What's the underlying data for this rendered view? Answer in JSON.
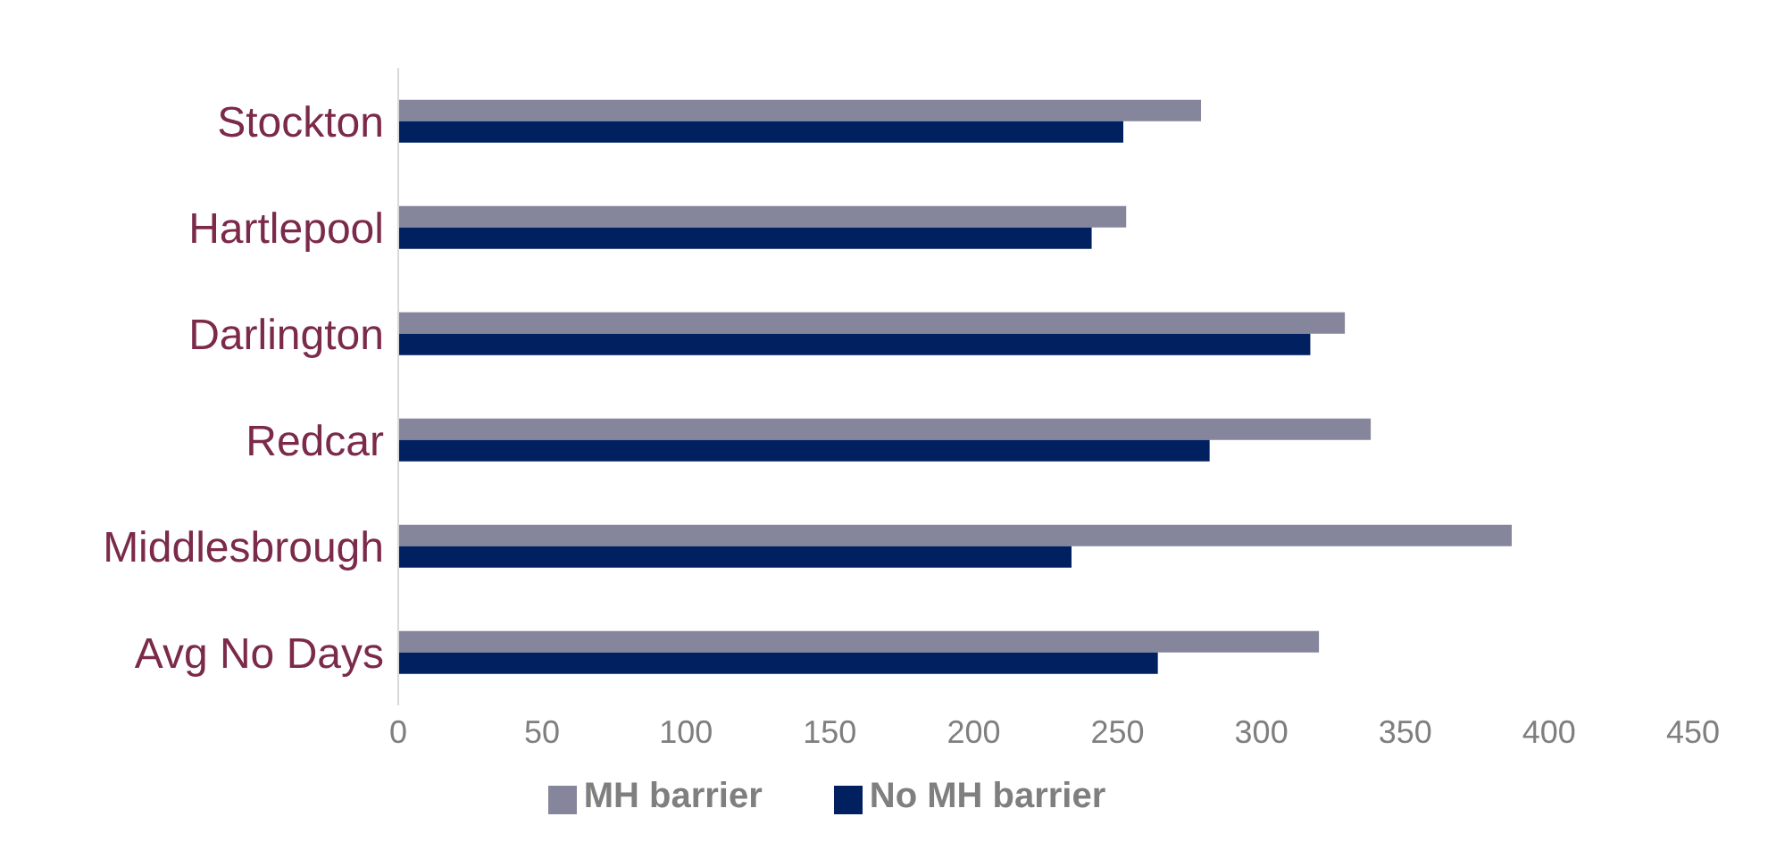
{
  "chart_data": {
    "type": "bar",
    "orientation": "horizontal",
    "categories": [
      "Stockton",
      "Hartlepool",
      "Darlington",
      "Redcar",
      "Middlesbrough",
      "Avg No Days"
    ],
    "series": [
      {
        "name": "MH barrier",
        "color": "#85859b",
        "values": [
          279,
          253,
          329,
          338,
          387,
          320
        ]
      },
      {
        "name": "No MH barrier",
        "color": "#00205f",
        "values": [
          252,
          241,
          317,
          282,
          234,
          264
        ]
      }
    ],
    "xlim": [
      0,
      450
    ],
    "xticks": [
      0,
      50,
      100,
      150,
      200,
      250,
      300,
      350,
      400,
      450
    ],
    "grid": false,
    "legend": "bottom"
  }
}
